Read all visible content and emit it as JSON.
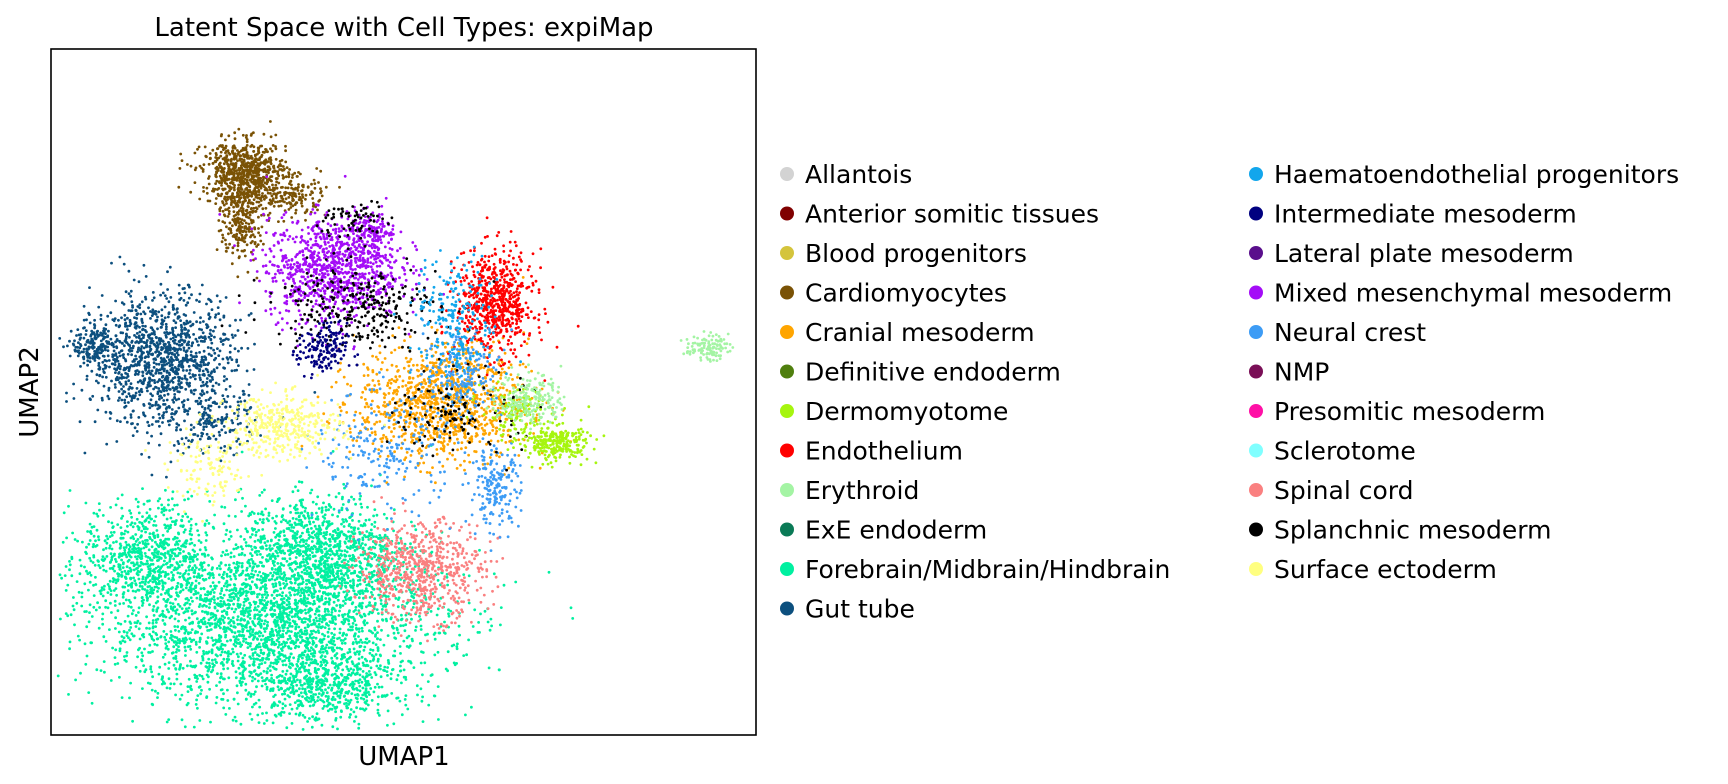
{
  "chart_data": {
    "type": "scatter",
    "title": "Latent Space with Cell Types: expiMap",
    "xlabel": "UMAP1",
    "ylabel": "UMAP2",
    "xlim": [
      -10,
      10
    ],
    "ylim": [
      -10,
      10
    ],
    "grid": false,
    "ticks_shown": false,
    "legend_placement": "right, outside plot, two columns",
    "series": [
      {
        "name": "Allantois",
        "color": "#d3d3d3",
        "clusters": []
      },
      {
        "name": "Anterior somitic tissues",
        "color": "#800000",
        "clusters": []
      },
      {
        "name": "Blood progenitors",
        "color": "#d4c43c",
        "clusters": []
      },
      {
        "name": "Cardiomyocytes",
        "color": "#7a5205",
        "clusters": [
          {
            "x": -4.5,
            "y": 6.4,
            "sx": 0.6,
            "sy": 0.45,
            "n": 700
          },
          {
            "x": -4.6,
            "y": 5.0,
            "sx": 0.3,
            "sy": 0.6,
            "n": 260
          },
          {
            "x": -3.2,
            "y": 5.7,
            "sx": 0.5,
            "sy": 0.3,
            "n": 150
          }
        ]
      },
      {
        "name": "Cranial mesoderm",
        "color": "#ffa500",
        "clusters": [
          {
            "x": 1.1,
            "y": -0.3,
            "sx": 1.2,
            "sy": 0.85,
            "n": 1100
          }
        ]
      },
      {
        "name": "Definitive endoderm",
        "color": "#4f7f0e",
        "clusters": []
      },
      {
        "name": "Dermomyotome",
        "color": "#a6f50f",
        "clusters": [
          {
            "x": 4.3,
            "y": -1.5,
            "sx": 0.5,
            "sy": 0.25,
            "n": 260
          },
          {
            "x": 3.2,
            "y": -0.6,
            "sx": 0.5,
            "sy": 0.35,
            "n": 120
          }
        ]
      },
      {
        "name": "Endothelium",
        "color": "#ff0000",
        "clusters": [
          {
            "x": 2.6,
            "y": 2.6,
            "sx": 0.55,
            "sy": 0.75,
            "n": 650
          }
        ]
      },
      {
        "name": "Erythroid",
        "color": "#a4f4a4",
        "clusters": [
          {
            "x": 8.6,
            "y": 1.3,
            "sx": 0.3,
            "sy": 0.18,
            "n": 110
          },
          {
            "x": 3.6,
            "y": -0.2,
            "sx": 0.45,
            "sy": 0.4,
            "n": 200
          }
        ]
      },
      {
        "name": "ExE endoderm",
        "color": "#0a7a56",
        "clusters": []
      },
      {
        "name": "Forebrain/Midbrain/Hindbrain",
        "color": "#00f0a0",
        "clusters": [
          {
            "x": -3.8,
            "y": -6.7,
            "sx": 2.4,
            "sy": 1.2,
            "n": 2800
          },
          {
            "x": -7.3,
            "y": -4.8,
            "sx": 0.9,
            "sy": 0.8,
            "n": 700
          },
          {
            "x": -2.4,
            "y": -4.6,
            "sx": 1.1,
            "sy": 0.8,
            "n": 1000
          },
          {
            "x": -2.2,
            "y": -8.6,
            "sx": 1.0,
            "sy": 0.55,
            "n": 500
          }
        ]
      },
      {
        "name": "Gut tube",
        "color": "#0c4f7e",
        "clusters": [
          {
            "x": -6.8,
            "y": 0.9,
            "sx": 1.0,
            "sy": 1.0,
            "n": 1200
          },
          {
            "x": -8.7,
            "y": 1.3,
            "sx": 0.35,
            "sy": 0.3,
            "n": 180
          },
          {
            "x": -5.2,
            "y": -0.9,
            "sx": 0.5,
            "sy": 0.45,
            "n": 120
          }
        ]
      },
      {
        "name": "Haematoendothelial progenitors",
        "color": "#12a6ec",
        "clusters": [
          {
            "x": 1.5,
            "y": 2.1,
            "sx": 0.6,
            "sy": 0.9,
            "n": 220
          }
        ]
      },
      {
        "name": "Intermediate mesoderm",
        "color": "#000080",
        "clusters": [
          {
            "x": -2.3,
            "y": 1.2,
            "sx": 0.35,
            "sy": 0.4,
            "n": 160
          }
        ]
      },
      {
        "name": "Lateral plate mesoderm",
        "color": "#5a0f8c",
        "clusters": []
      },
      {
        "name": "Mixed mesenchymal mesoderm",
        "color": "#a40df7",
        "clusters": [
          {
            "x": -2.0,
            "y": 3.6,
            "sx": 0.95,
            "sy": 0.75,
            "n": 950
          },
          {
            "x": -0.9,
            "y": 4.6,
            "sx": 0.35,
            "sy": 0.3,
            "n": 150
          }
        ]
      },
      {
        "name": "Neural crest",
        "color": "#3d9cf5",
        "clusters": [
          {
            "x": 2.6,
            "y": -2.8,
            "sx": 0.35,
            "sy": 0.55,
            "n": 180
          },
          {
            "x": 1.7,
            "y": 0.6,
            "sx": 0.55,
            "sy": 0.7,
            "n": 200
          },
          {
            "x": -0.5,
            "y": -1.8,
            "sx": 1.0,
            "sy": 0.9,
            "n": 220
          }
        ]
      },
      {
        "name": "NMP",
        "color": "#7a0f57",
        "clusters": []
      },
      {
        "name": "Presomitic mesoderm",
        "color": "#ff10a6",
        "clusters": []
      },
      {
        "name": "Sclerotome",
        "color": "#80ffff",
        "clusters": []
      },
      {
        "name": "Spinal cord",
        "color": "#fa8080",
        "clusters": [
          {
            "x": 0.5,
            "y": -5.2,
            "sx": 0.9,
            "sy": 0.7,
            "n": 650
          }
        ]
      },
      {
        "name": "Splanchnic mesoderm",
        "color": "#000000",
        "clusters": [
          {
            "x": -1.4,
            "y": 2.5,
            "sx": 1.2,
            "sy": 0.6,
            "n": 300
          },
          {
            "x": -1.4,
            "y": 5.0,
            "sx": 0.5,
            "sy": 0.3,
            "n": 70
          },
          {
            "x": 1.6,
            "y": -0.6,
            "sx": 0.9,
            "sy": 0.6,
            "n": 120
          }
        ]
      },
      {
        "name": "Surface ectoderm",
        "color": "#ffff80",
        "clusters": [
          {
            "x": -3.4,
            "y": -1.0,
            "sx": 0.8,
            "sy": 0.45,
            "n": 380
          },
          {
            "x": -5.5,
            "y": -2.3,
            "sx": 0.6,
            "sy": 0.5,
            "n": 120
          }
        ]
      }
    ]
  }
}
